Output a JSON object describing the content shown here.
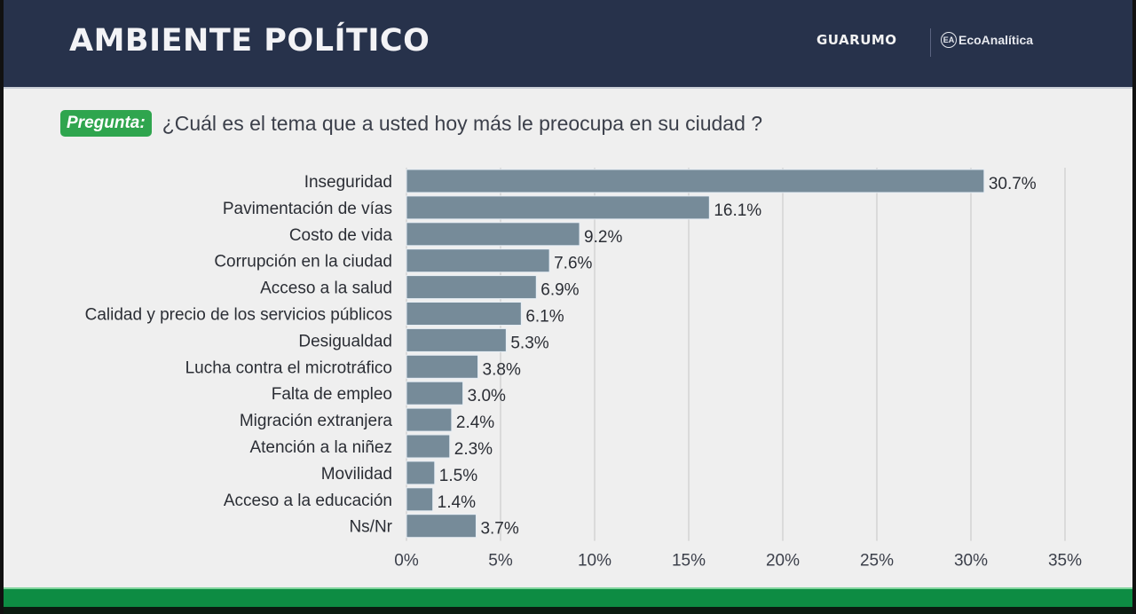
{
  "header": {
    "title": "AMBIENTE POLÍTICO",
    "logo_primary": "GUARUMO",
    "logo_secondary": "EcoAnalítica",
    "logo_secondary_icon": "EA"
  },
  "question": {
    "badge": "Pregunta:",
    "text": "¿Cuál es el tema que a usted hoy más le preocupa en su ciudad ?"
  },
  "colors": {
    "header_bg": "#27324b",
    "bar": "#768b99",
    "badge": "#2fa54e",
    "footer": "#0d8c43"
  },
  "chart_data": {
    "type": "bar",
    "orientation": "horizontal",
    "title": "¿Cuál es el tema que a usted hoy más le preocupa en su ciudad ?",
    "xlabel": "",
    "ylabel": "",
    "xlim": [
      0,
      35
    ],
    "grid": true,
    "categories": [
      "Inseguridad",
      "Pavimentación de vías",
      "Costo de vida",
      "Corrupción en la ciudad",
      "Acceso a la salud",
      "Calidad y precio de los servicios públicos",
      "Desigualdad",
      "Lucha contra el microtráfico",
      "Falta de empleo",
      "Migración extranjera",
      "Atención a la niñez",
      "Movilidad",
      "Acceso a la educación",
      "Ns/Nr"
    ],
    "values": [
      30.7,
      16.1,
      9.2,
      7.6,
      6.9,
      6.1,
      5.3,
      3.8,
      3.0,
      2.4,
      2.3,
      1.5,
      1.4,
      3.7
    ],
    "value_labels": [
      "30.7%",
      "16.1%",
      "9.2%",
      "7.6%",
      "6.9%",
      "6.1%",
      "5.3%",
      "3.8%",
      "3.0%",
      "2.4%",
      "2.3%",
      "1.5%",
      "1.4%",
      "3.7%"
    ],
    "ticks": [
      0,
      5,
      10,
      15,
      20,
      25,
      30,
      35
    ],
    "tick_labels": [
      "0%",
      "5%",
      "10%",
      "15%",
      "20%",
      "25%",
      "30%",
      "35%"
    ]
  }
}
